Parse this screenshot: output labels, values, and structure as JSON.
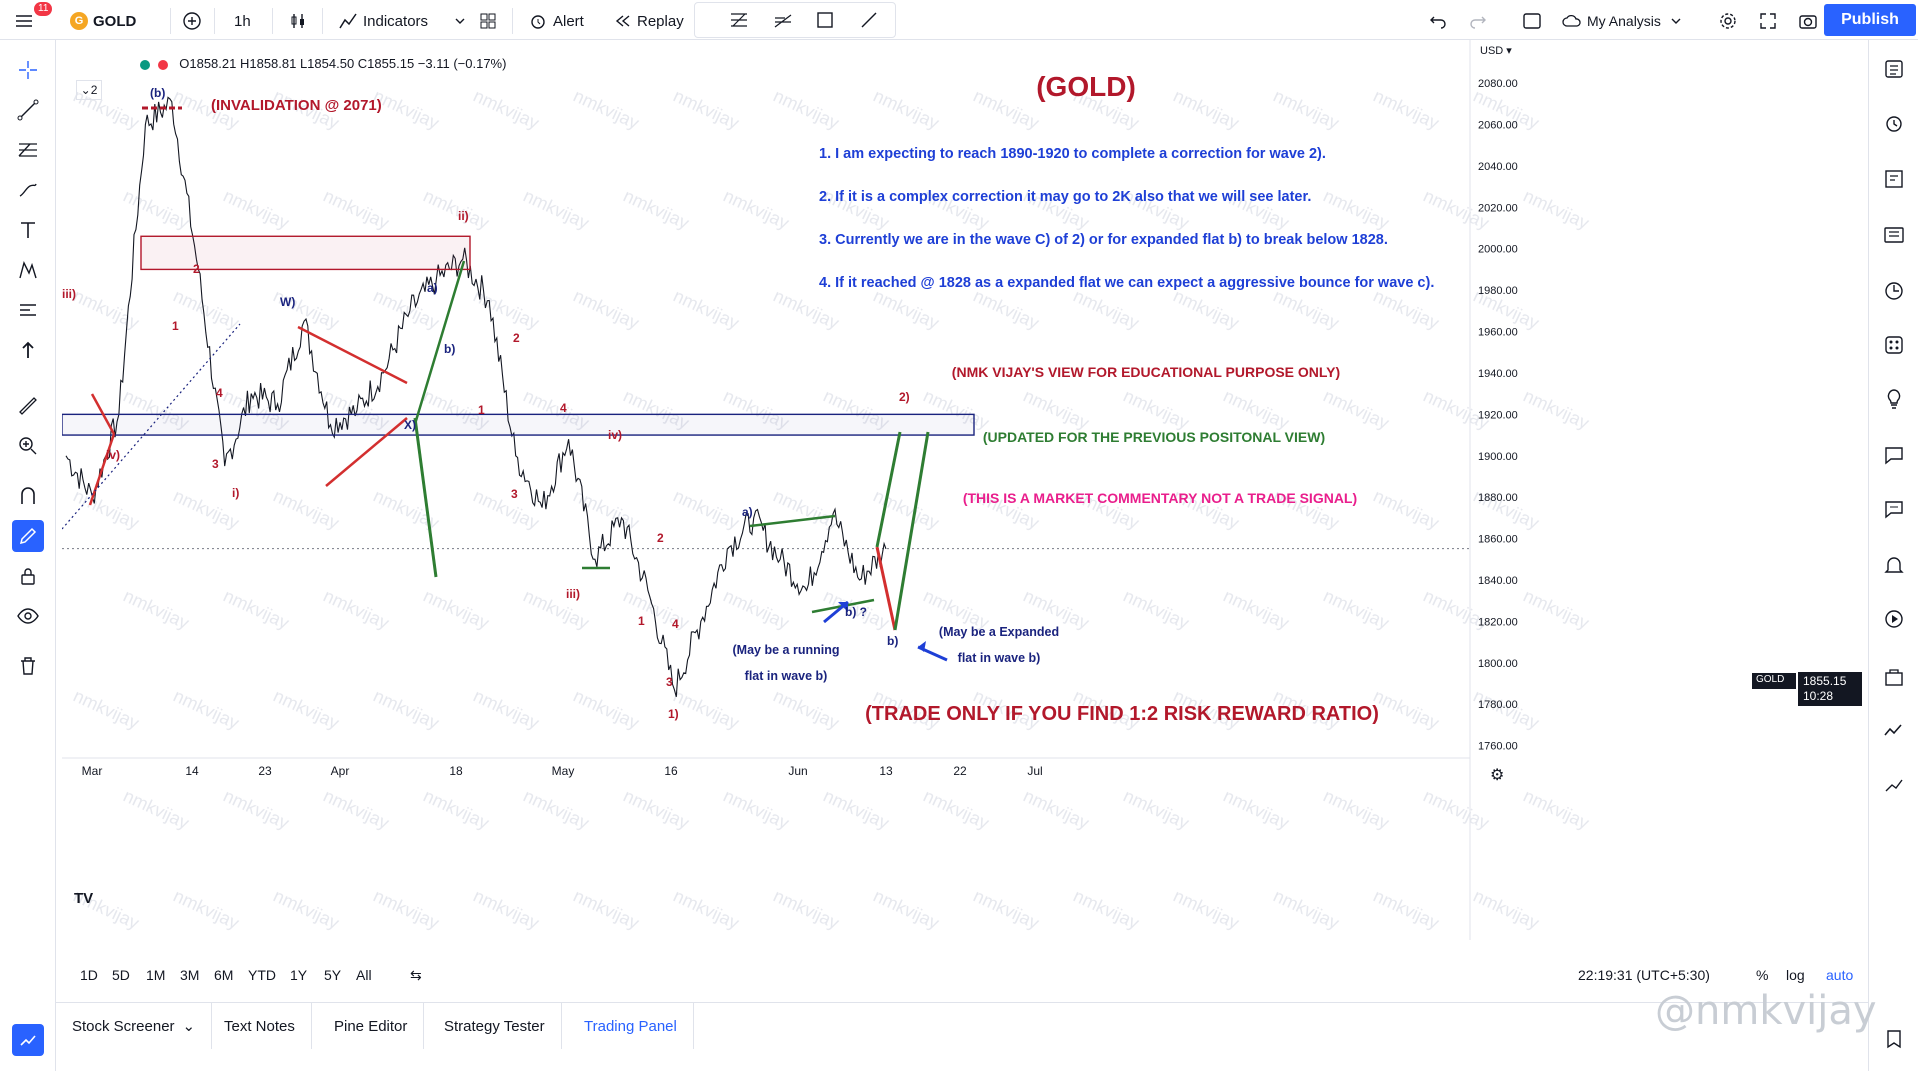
{
  "toolbar": {
    "notification_count": "11",
    "symbol": "GOLD",
    "interval": "1h",
    "indicators_label": "Indicators",
    "alert_label": "Alert",
    "replay_label": "Replay",
    "layout_label": "My Analysis",
    "publish_label": "Publish"
  },
  "legend": {
    "ohlc": "O1858.21 H1858.81 L1854.50 C1855.15 −3.11 (−0.17%)",
    "collapse_count": "2"
  },
  "price_axis": {
    "currency": "USD",
    "ticks": [
      "2080.00",
      "2060.00",
      "2040.00",
      "2020.00",
      "2000.00",
      "1980.00",
      "1960.00",
      "1940.00",
      "1920.00",
      "1900.00",
      "1880.00",
      "1860.00",
      "1840.00",
      "1820.00",
      "1800.00",
      "1780.00",
      "1760.00"
    ],
    "last_price_symbol": "GOLD",
    "last_price": "1855.15",
    "countdown": "10:28"
  },
  "time_axis": {
    "ticks": [
      "Mar",
      "14",
      "23",
      "Apr",
      "18",
      "May",
      "16",
      "Jun",
      "13",
      "22",
      "Jul"
    ]
  },
  "bottom": {
    "timeframes": [
      "1D",
      "5D",
      "1M",
      "3M",
      "6M",
      "YTD",
      "1Y",
      "5Y",
      "All"
    ],
    "clock": "22:19:31 (UTC+5:30)",
    "pct_label": "%",
    "log_label": "log",
    "auto_label": "auto"
  },
  "panels": [
    "Stock Screener",
    "Text Notes",
    "Pine Editor",
    "Strategy Tester",
    "Trading Panel"
  ],
  "watermark": "@nmkvijay",
  "annotations": {
    "title": "(GOLD)",
    "invalidation": "(INVALIDATION @ 2071)",
    "notes": [
      "1. I am expecting to reach 1890-1920 to complete a correction for wave 2).",
      "2. If it is a complex correction it may go to 2K also that we will see later.",
      "3. Currently we are in the wave C) of 2)  or for expanded flat b) to break below 1828.",
      "4. If it reached @ 1828 as a expanded flat  we can expect a aggressive bounce for wave c)."
    ],
    "edu": "(NMK VIJAY'S VIEW FOR EDUCATIONAL PURPOSE ONLY)",
    "updated": "(UPDATED FOR THE PREVIOUS POSITONAL VIEW)",
    "commentary": "(THIS IS A MARKET COMMENTARY NOT A TRADE SIGNAL)",
    "trade": "(TRADE ONLY IF YOU FIND 1:2 RISK REWARD RATIO)",
    "running1": "(May be a running",
    "running2": "flat in wave b)",
    "expanded1": "(May be a Expanded",
    "expanded2": "flat in wave b)"
  },
  "wave_labels": {
    "b_top": "(b)",
    "iii": "iii)",
    "iv": "iv)",
    "one_a": "1",
    "two_a": "2",
    "three_a": "3",
    "four_a": "4",
    "i": "i)",
    "W": "W)",
    "X": "X)",
    "a1": "a)",
    "b1": "b)",
    "ii": "ii)",
    "two_b": "2",
    "one_b": "1",
    "three_b": "3",
    "four_b": "4",
    "iv2": "iv)",
    "iii2": "iii)",
    "two_c": "2",
    "one_c": "1",
    "four_c": "4",
    "three_c": "3",
    "one_paren": "1)",
    "a2": "a)",
    "b2": "b) ?",
    "b3": "b)",
    "two_paren": "2)"
  },
  "chart_data": {
    "type": "line",
    "title": "(GOLD)",
    "xlabel": "",
    "ylabel": "",
    "ylim": [
      1755,
      2095
    ],
    "x_ticks": [
      "Mar",
      "14",
      "23",
      "Apr",
      "18",
      "May",
      "16",
      "Jun",
      "13",
      "22",
      "Jul"
    ],
    "series": [
      {
        "x": [
          "Feb 25",
          "Mar 1",
          "Mar 3",
          "Mar 8",
          "Mar 10",
          "Mar 14",
          "Mar 17",
          "Mar 22",
          "Mar 25",
          "Mar 29",
          "Apr 1",
          "Apr 5",
          "Apr 8",
          "Apr 12",
          "Apr 14",
          "Apr 18",
          "Apr 21",
          "Apr 25",
          "Apr 28",
          "May 2",
          "May 5",
          "May 9",
          "May 12",
          "May 16",
          "May 19",
          "May 23",
          "May 26",
          "May 30",
          "Jun 2",
          "Jun 6",
          "Jun 8",
          "Jun 10"
        ],
        "values": [
          1900,
          1880,
          1920,
          2060,
          2071,
          1990,
          1895,
          1930,
          1925,
          1965,
          1915,
          1922,
          1940,
          1970,
          1985,
          1995,
          1975,
          1900,
          1875,
          1908,
          1850,
          1870,
          1835,
          1787,
          1820,
          1855,
          1870,
          1850,
          1835,
          1872,
          1840,
          1855
        ]
      }
    ],
    "zones": [
      {
        "name": "upper box",
        "from": 1990,
        "to": 2006
      },
      {
        "name": "target box",
        "from": 1910,
        "to": 1920
      }
    ],
    "last_price": 1855.15,
    "grid": false
  }
}
